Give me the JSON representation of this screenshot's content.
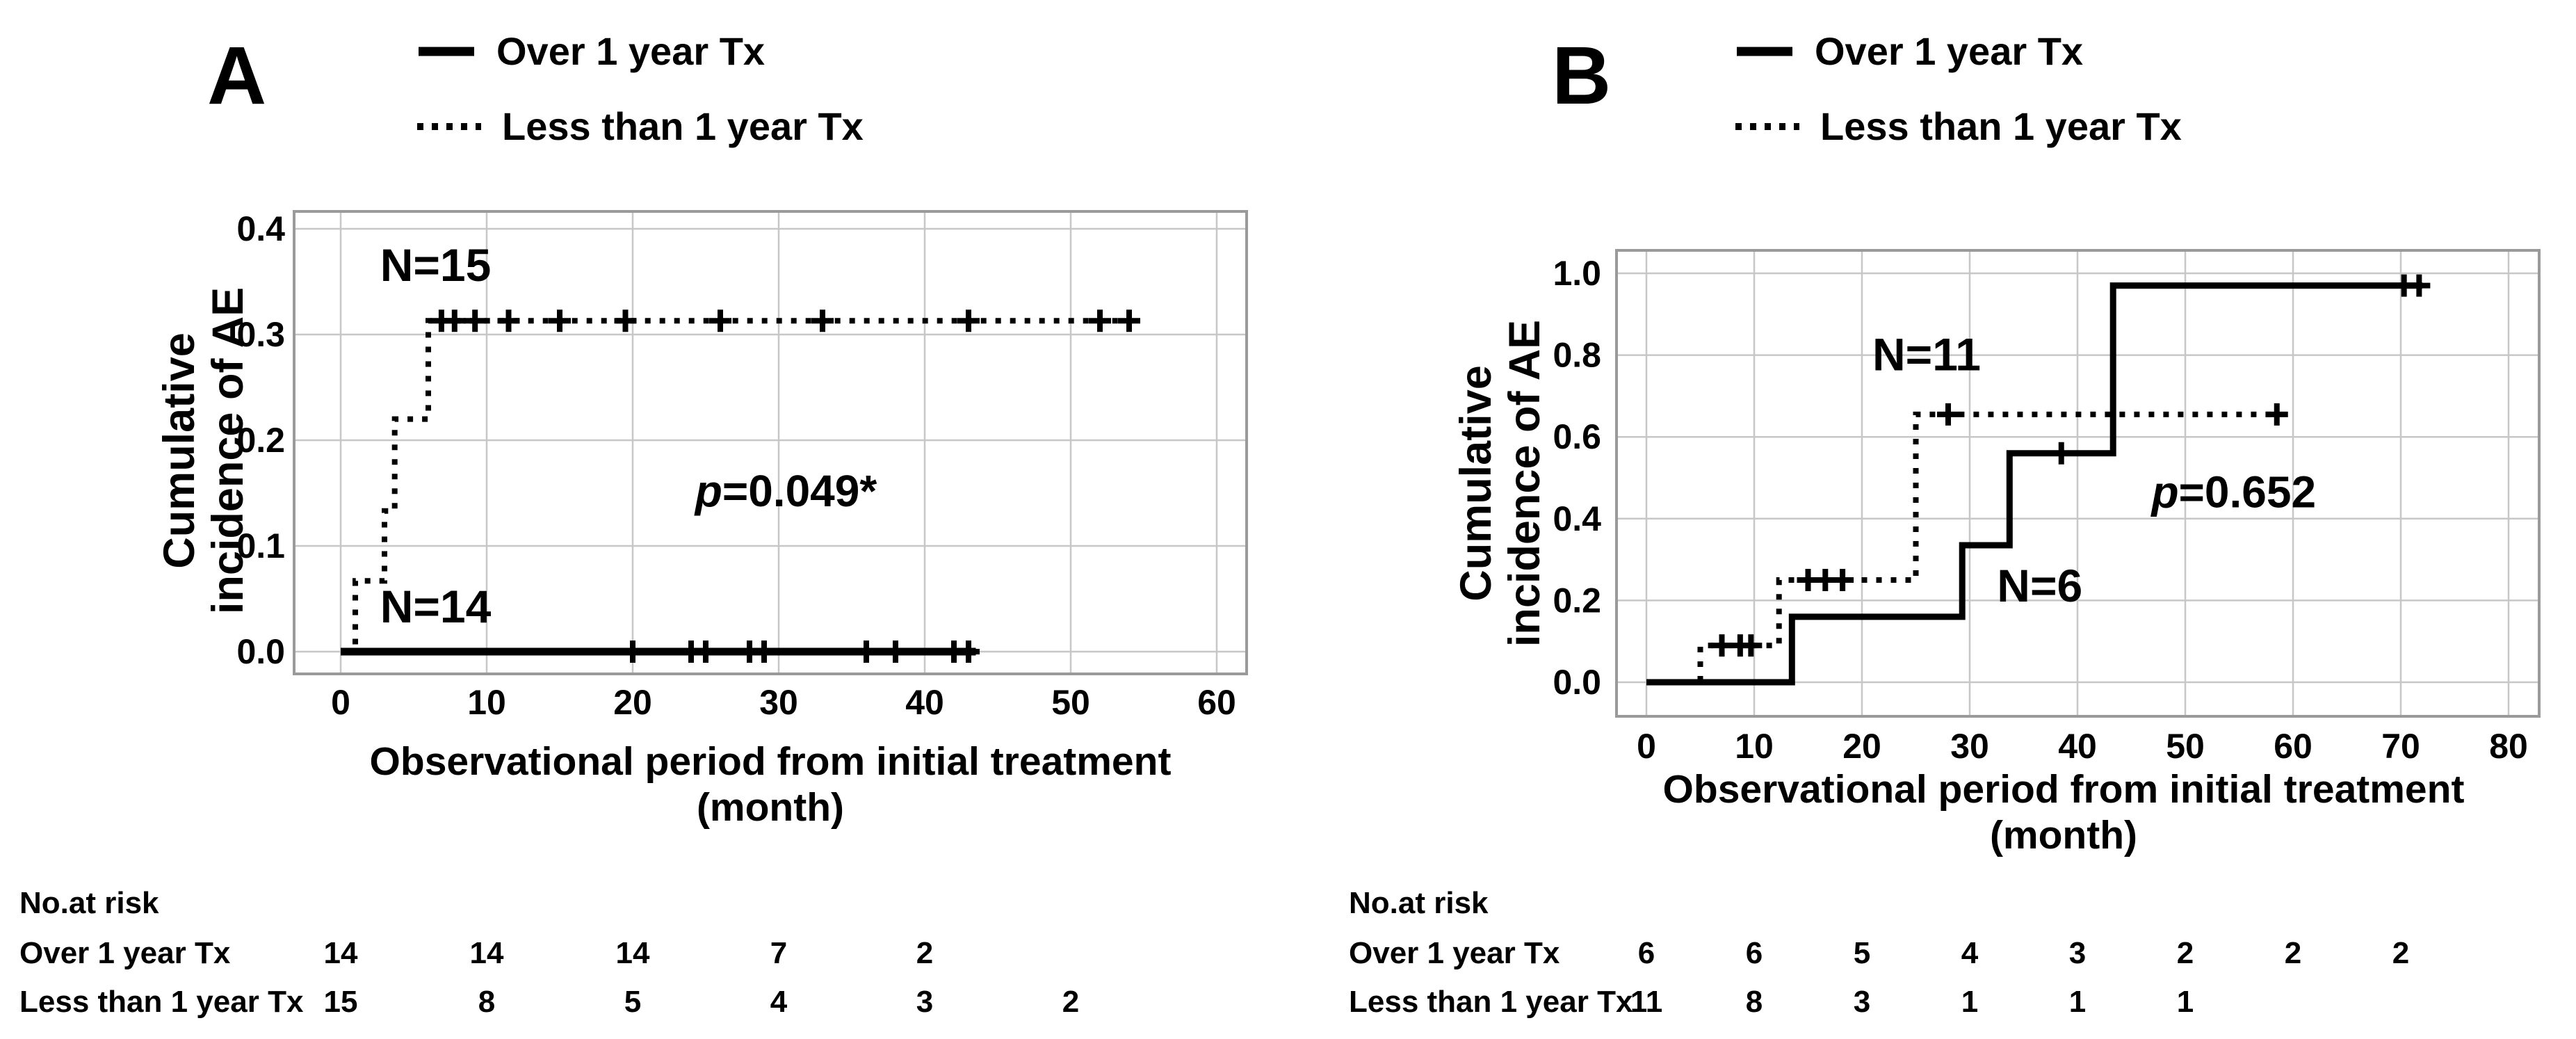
{
  "panels": [
    {
      "letter": "A",
      "legend": [
        {
          "style": "solid",
          "label": "Over 1 year Tx"
        },
        {
          "style": "dotted",
          "label": "Less than 1 year Tx"
        }
      ],
      "ylabel_lines": [
        "Cumulative",
        "incidence of AE"
      ],
      "xlabel_lines": [
        "Observational period from initial treatment",
        "(month)"
      ],
      "risk_table": {
        "title": "No.at risk",
        "rows": [
          {
            "label": "Over 1 year Tx",
            "values": [
              14,
              14,
              14,
              7,
              2
            ]
          },
          {
            "label": "Less than 1 year Tx",
            "values": [
              15,
              8,
              5,
              4,
              3,
              2
            ]
          }
        ]
      }
    },
    {
      "letter": "B",
      "legend": [
        {
          "style": "solid",
          "label": "Over 1 year Tx"
        },
        {
          "style": "dotted",
          "label": "Less than 1 year Tx"
        }
      ],
      "ylabel_lines": [
        "Cumulative",
        "incidence of AE"
      ],
      "xlabel_lines": [
        "Observational period from initial treatment",
        "(month)"
      ],
      "risk_table": {
        "title": "No.at risk",
        "rows": [
          {
            "label": "Over 1 year Tx",
            "values": [
              6,
              6,
              5,
              4,
              3,
              2,
              2,
              2
            ]
          },
          {
            "label": "Less than 1 year Tx",
            "values": [
              11,
              8,
              3,
              1,
              1,
              1
            ]
          }
        ]
      }
    }
  ],
  "chart_data": [
    {
      "type": "line",
      "step": true,
      "panel": "A",
      "title": "",
      "xlabel": "Observational period from initial treatment (month)",
      "ylabel": "Cumulative incidence of AE",
      "xlim": [
        -3.2,
        62
      ],
      "ylim": [
        -0.021,
        0.416
      ],
      "xticks": [
        0,
        10,
        20,
        30,
        40,
        50,
        60
      ],
      "xtick_labels": [
        "0",
        "10",
        "20",
        "30",
        "40",
        "50",
        "60"
      ],
      "yticks": [
        0,
        0.1,
        0.2,
        0.3,
        0.4
      ],
      "ytick_labels": [
        "0.0",
        "0.1",
        "0.2",
        "0.3",
        "0.4"
      ],
      "grid": true,
      "legend_position": "top",
      "series": [
        {
          "name": "Over 1 year Tx",
          "n": 14,
          "line": "solid",
          "points": [
            [
              0,
              0
            ],
            [
              43.5,
              0
            ]
          ],
          "censor_marks": [
            [
              20,
              0
            ],
            [
              24,
              0
            ],
            [
              25,
              0
            ],
            [
              28,
              0
            ],
            [
              29,
              0
            ],
            [
              36,
              0
            ],
            [
              38,
              0
            ],
            [
              42,
              0
            ],
            [
              43,
              0
            ]
          ]
        },
        {
          "name": "Less than 1 year Tx",
          "n": 15,
          "line": "dotted",
          "points": [
            [
              0.5,
              0
            ],
            [
              1,
              0
            ],
            [
              1,
              0.067
            ],
            [
              3,
              0.067
            ],
            [
              3,
              0.133
            ],
            [
              3.7,
              0.133
            ],
            [
              3.7,
              0.22
            ],
            [
              6,
              0.22
            ],
            [
              6,
              0.313
            ],
            [
              54.5,
              0.313
            ]
          ],
          "censor_marks": [
            [
              6.9,
              0.313
            ],
            [
              7.8,
              0.313
            ],
            [
              9.2,
              0.313
            ],
            [
              11.5,
              0.313
            ],
            [
              15,
              0.313
            ],
            [
              19.5,
              0.313
            ],
            [
              26,
              0.313
            ],
            [
              33,
              0.313
            ],
            [
              43,
              0.313
            ],
            [
              52,
              0.313
            ],
            [
              54,
              0.313
            ]
          ]
        }
      ],
      "annotations": [
        {
          "kind": "n-label",
          "text": "N=15",
          "x": 6.5,
          "y": 0.365
        },
        {
          "kind": "n-label",
          "text": "N=14",
          "x": 6.5,
          "y": 0.042
        },
        {
          "kind": "p-value",
          "italic": "p",
          "text": "=0.049*",
          "x": 30.5,
          "y": 0.152
        }
      ]
    },
    {
      "type": "line",
      "step": true,
      "panel": "B",
      "title": "",
      "xlabel": "Observational period from initial treatment (month)",
      "ylabel": "Cumulative incidence of AE",
      "xlim": [
        -3.1,
        82.8
      ],
      "ylim": [
        -0.083,
        1.056
      ],
      "xticks": [
        0,
        10,
        20,
        30,
        40,
        50,
        60,
        70,
        80
      ],
      "xtick_labels": [
        "0",
        "10",
        "20",
        "30",
        "40",
        "50",
        "60",
        "70",
        "80"
      ],
      "yticks": [
        0,
        0.2,
        0.4,
        0.6,
        0.8,
        1.0
      ],
      "ytick_labels": [
        "0.0",
        "0.2",
        "0.4",
        "0.6",
        "0.8",
        "1.0"
      ],
      "grid": true,
      "legend_position": "top",
      "series": [
        {
          "name": "Over 1 year Tx",
          "n": 6,
          "line": "solid",
          "points": [
            [
              0,
              0
            ],
            [
              13.5,
              0
            ],
            [
              13.5,
              0.16
            ],
            [
              29.3,
              0.16
            ],
            [
              29.3,
              0.335
            ],
            [
              33.7,
              0.335
            ],
            [
              33.7,
              0.56
            ],
            [
              43.3,
              0.56
            ],
            [
              43.3,
              0.97
            ],
            [
              72,
              0.97
            ]
          ],
          "censor_marks": [
            [
              38.5,
              0.56
            ],
            [
              70.3,
              0.97
            ],
            [
              71.7,
              0.97
            ]
          ]
        },
        {
          "name": "Less than 1 year Tx",
          "n": 11,
          "line": "dotted",
          "points": [
            [
              1,
              0
            ],
            [
              5,
              0
            ],
            [
              5,
              0.09
            ],
            [
              12.3,
              0.09
            ],
            [
              12.3,
              0.25
            ],
            [
              25,
              0.25
            ],
            [
              25,
              0.655
            ],
            [
              58.5,
              0.655
            ]
          ],
          "censor_marks": [
            [
              7,
              0.09
            ],
            [
              8.7,
              0.09
            ],
            [
              9.7,
              0.09
            ],
            [
              15,
              0.25
            ],
            [
              16.6,
              0.25
            ],
            [
              18.2,
              0.25
            ],
            [
              28,
              0.655
            ],
            [
              58.5,
              0.655
            ]
          ]
        }
      ],
      "annotations": [
        {
          "kind": "n-label",
          "text": "N=11",
          "x": 26,
          "y": 0.8
        },
        {
          "kind": "n-label",
          "text": "N=6",
          "x": 36.5,
          "y": 0.235
        },
        {
          "kind": "p-value",
          "italic": "p",
          "text": "=0.652",
          "x": 54.5,
          "y": 0.465
        }
      ]
    }
  ],
  "colors": {
    "curve": "#000000",
    "grid": "#c7c7c7",
    "frame": "#9a9a9a",
    "background": "#ffffff"
  }
}
